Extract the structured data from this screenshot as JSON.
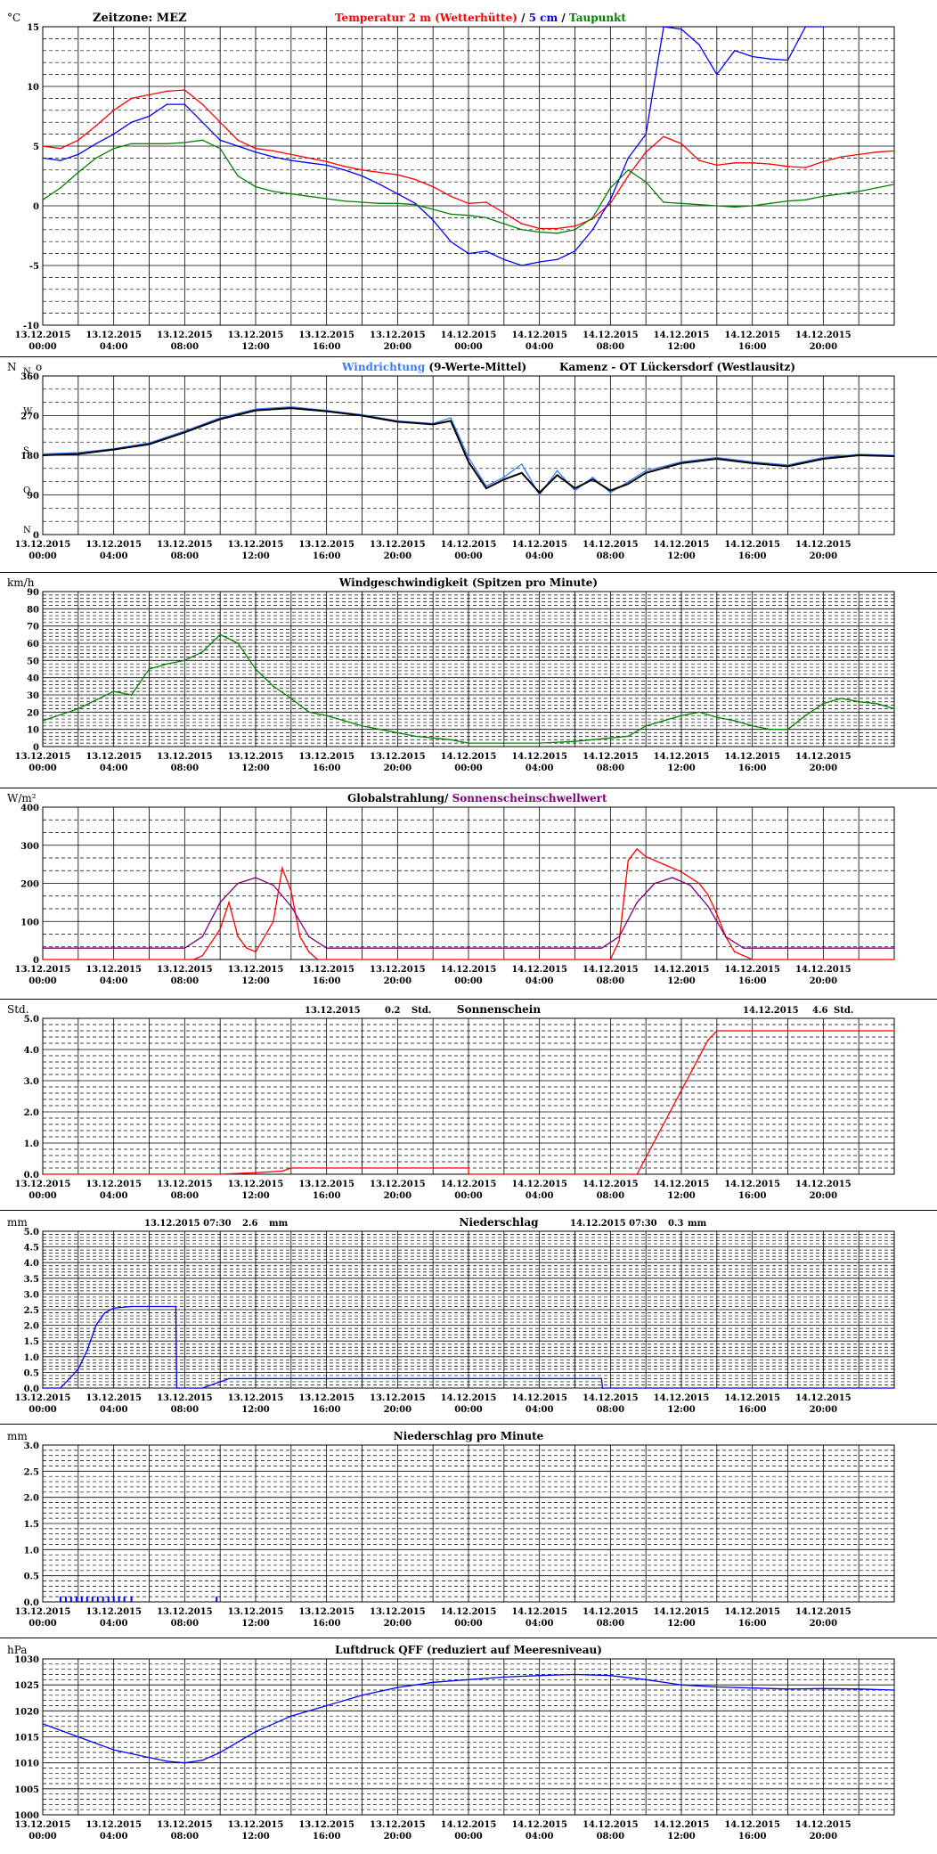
{
  "x_axis": {
    "dates": [
      "13.12.2015",
      "13.12.2015",
      "13.12.2015",
      "13.12.2015",
      "13.12.2015",
      "13.12.2015",
      "14.12.2015",
      "14.12.2015",
      "14.12.2015",
      "14.12.2015",
      "14.12.2015",
      "14.12.2015"
    ],
    "times": [
      "00:00",
      "04:00",
      "08:00",
      "12:00",
      "16:00",
      "20:00",
      "00:00",
      "04:00",
      "08:00",
      "12:00",
      "16:00",
      "20:00"
    ],
    "range_hours": [
      0,
      48
    ]
  },
  "chart_data": [
    {
      "id": "temp",
      "type": "line",
      "unit": "°C",
      "zone": "Zeitzone: MEZ",
      "title_parts": [
        {
          "text": "Temperatur 2 m (Wetterhütte)",
          "color": "#ff0000"
        },
        {
          "text": " / ",
          "color": "#000000"
        },
        {
          "text": "5 cm",
          "color": "#0000ff"
        },
        {
          "text": " / ",
          "color": "#000000"
        },
        {
          "text": "Taupunkt",
          "color": "#008000"
        }
      ],
      "ylim": [
        -10,
        15
      ],
      "yticks": [
        -10,
        -5,
        0,
        5,
        10,
        15
      ],
      "series": [
        {
          "color": "#ff0000",
          "x": [
            0,
            1,
            2,
            3,
            4,
            5,
            6,
            7,
            8,
            9,
            10,
            11,
            12,
            13,
            14,
            15,
            16,
            17,
            18,
            19,
            20,
            21,
            22,
            23,
            24,
            25,
            26,
            27,
            28,
            29,
            30,
            31,
            32,
            33,
            34,
            35,
            36,
            37,
            38,
            39,
            40,
            41,
            42,
            43,
            44,
            45,
            46,
            47,
            48
          ],
          "values": [
            5,
            4.8,
            5.5,
            6.7,
            8,
            9,
            9.3,
            9.6,
            9.7,
            8.5,
            7,
            5.5,
            4.8,
            4.6,
            4.3,
            4,
            3.7,
            3.3,
            3,
            2.8,
            2.6,
            2.2,
            1.6,
            0.8,
            0.2,
            0.3,
            -0.6,
            -1.5,
            -1.9,
            -1.9,
            -1.7,
            -1.1,
            0.2,
            2.5,
            4.5,
            5.8,
            5.2,
            3.8,
            3.4,
            3.6,
            3.6,
            3.5,
            3.3,
            3.2,
            3.7,
            4.1,
            4.3,
            4.5,
            4.6
          ]
        },
        {
          "color": "#0000ff",
          "x": [
            0,
            1,
            2,
            3,
            4,
            5,
            6,
            7,
            8,
            9,
            10,
            11,
            12,
            13,
            14,
            15,
            16,
            17,
            18,
            19,
            20,
            21,
            22,
            23,
            24,
            25,
            26,
            27,
            28,
            29,
            30,
            31,
            32,
            33,
            34,
            35,
            36,
            37,
            38,
            39,
            40,
            41,
            42,
            43,
            44
          ],
          "values": [
            4,
            3.8,
            4.3,
            5.2,
            6,
            7,
            7.5,
            8.5,
            8.5,
            7,
            5.5,
            5,
            4.5,
            4.1,
            3.8,
            3.6,
            3.4,
            3,
            2.5,
            1.8,
            1,
            0.2,
            -1.2,
            -3,
            -4,
            -3.8,
            -4.5,
            -5,
            -4.7,
            -4.5,
            -3.8,
            -2,
            0.5,
            4,
            6,
            15.5,
            14.8,
            13.5,
            11,
            13,
            12.5,
            12.3,
            12.2,
            15,
            15
          ]
        },
        {
          "color": "#008000",
          "x": [
            0,
            1,
            2,
            3,
            4,
            5,
            6,
            7,
            8,
            9,
            10,
            11,
            12,
            13,
            14,
            15,
            16,
            17,
            18,
            19,
            20,
            21,
            22,
            23,
            24,
            25,
            26,
            27,
            28,
            29,
            30,
            31,
            32,
            33,
            34,
            35,
            36,
            37,
            38,
            39,
            40,
            41,
            42,
            43,
            44,
            45,
            46,
            47,
            48
          ],
          "values": [
            0.5,
            1.5,
            2.8,
            4,
            4.8,
            5.2,
            5.2,
            5.2,
            5.3,
            5.5,
            4.8,
            2.5,
            1.6,
            1.2,
            1,
            0.8,
            0.6,
            0.4,
            0.3,
            0.2,
            0.2,
            0.1,
            -0.3,
            -0.7,
            -0.8,
            -1,
            -1.5,
            -2,
            -2.2,
            -2.3,
            -2,
            -1,
            1.5,
            3,
            2,
            0.3,
            0.2,
            0.1,
            0,
            -0.1,
            0,
            0.2,
            0.4,
            0.5,
            0.8,
            1,
            1.2,
            1.5,
            1.8
          ]
        }
      ]
    },
    {
      "id": "wind_dir",
      "type": "line",
      "unit": "N",
      "unit_suffix": "o",
      "title_parts": [
        {
          "text": "Windrichtung",
          "color": "#3b7cff"
        },
        {
          "text": " (9-Werte-Mittel)",
          "color": "#000000"
        }
      ],
      "station": "Kamenz - OT Lückersdorf (Westlausitz)",
      "ylim": [
        0,
        360
      ],
      "yticks": [
        0,
        90,
        180,
        270,
        360
      ],
      "compass": [
        "N",
        "O",
        "S",
        "W",
        "N"
      ],
      "series": [
        {
          "name": "Windrichtung",
          "color": "#3b7cff",
          "x": [
            0,
            2,
            4,
            6,
            8,
            10,
            12,
            14,
            16,
            18,
            20,
            22,
            23,
            24,
            25,
            26,
            27,
            28,
            29,
            30,
            31,
            32,
            33,
            34,
            36,
            38,
            40,
            42,
            44,
            46,
            48
          ],
          "values": [
            183,
            186,
            195,
            208,
            235,
            265,
            285,
            290,
            282,
            272,
            258,
            252,
            265,
            175,
            110,
            130,
            160,
            90,
            145,
            100,
            130,
            95,
            120,
            145,
            165,
            175,
            165,
            158,
            175,
            182,
            180
          ]
        },
        {
          "name": "9-Werte-Mittel",
          "color": "#000000",
          "x": [
            0,
            2,
            4,
            6,
            8,
            10,
            12,
            14,
            16,
            18,
            20,
            22,
            23,
            24,
            25,
            26,
            27,
            28,
            29,
            30,
            31,
            32,
            33,
            34,
            36,
            38,
            40,
            42,
            44,
            46,
            48
          ],
          "values": [
            180,
            183,
            193,
            205,
            232,
            262,
            282,
            287,
            280,
            270,
            256,
            250,
            258,
            165,
            105,
            125,
            140,
            95,
            135,
            105,
            125,
            100,
            115,
            140,
            162,
            172,
            162,
            155,
            172,
            180,
            178
          ]
        }
      ]
    },
    {
      "id": "wind_speed",
      "type": "line",
      "unit": "km/h",
      "title": "Windgeschwindigkeit (Spitzen pro Minute)",
      "ylim": [
        0,
        90
      ],
      "yticks": [
        0,
        10,
        20,
        30,
        40,
        50,
        60,
        70,
        80,
        90
      ],
      "series": [
        {
          "color": "#008000",
          "x": [
            0,
            2,
            4,
            5,
            6,
            7,
            8,
            9,
            10,
            11,
            12,
            13,
            14,
            15,
            16,
            17,
            18,
            19,
            20,
            21,
            22,
            23,
            24,
            26,
            28,
            30,
            32,
            33,
            34,
            35,
            36,
            37,
            38,
            39,
            40,
            41,
            42,
            43,
            44,
            45,
            46,
            47,
            48
          ],
          "values": [
            15,
            22,
            32,
            30,
            45,
            48,
            50,
            55,
            65,
            60,
            45,
            35,
            28,
            20,
            18,
            15,
            12,
            10,
            8,
            6,
            5,
            4,
            2,
            2,
            2,
            3,
            5,
            6,
            12,
            15,
            18,
            20,
            17,
            15,
            12,
            10,
            10,
            18,
            25,
            28,
            26,
            25,
            22
          ]
        }
      ]
    },
    {
      "id": "radiation",
      "type": "line",
      "unit": "W/m²",
      "title_parts": [
        {
          "text": "Globalstrahlung/",
          "color": "#000000"
        },
        {
          "text": " Sonnenscheinschwellwert",
          "color": "#800080"
        }
      ],
      "ylim": [
        0,
        400
      ],
      "yticks": [
        0,
        100,
        200,
        300,
        400
      ],
      "series": [
        {
          "name": "Globalstrahlung",
          "color": "#ff0000",
          "x": [
            0,
            8.5,
            9,
            10,
            10.5,
            11,
            11.5,
            12,
            13,
            13.5,
            14,
            14.5,
            15,
            15.5,
            24,
            32,
            32.5,
            33,
            33.5,
            34,
            35,
            36,
            37,
            37.5,
            38,
            38.5,
            39,
            40,
            48
          ],
          "values": [
            0,
            0,
            10,
            80,
            150,
            60,
            30,
            20,
            100,
            240,
            180,
            60,
            20,
            0,
            0,
            0,
            50,
            260,
            290,
            270,
            250,
            230,
            200,
            170,
            120,
            60,
            20,
            0,
            0
          ]
        },
        {
          "name": "Sonnenscheinschwellwert",
          "color": "#800080",
          "x": [
            0,
            8,
            9,
            10,
            11,
            12,
            13,
            14,
            15,
            16,
            31.5,
            32.5,
            33.5,
            34.5,
            35.5,
            36.5,
            37.5,
            38.5,
            39.5,
            40.5,
            48
          ],
          "values": [
            30,
            30,
            60,
            150,
            200,
            215,
            195,
            140,
            60,
            30,
            30,
            60,
            150,
            200,
            215,
            195,
            140,
            60,
            30,
            30,
            30
          ]
        }
      ]
    },
    {
      "id": "sunshine",
      "type": "line",
      "unit": "Std.",
      "title": "Sonnenschein",
      "day1": {
        "date": "13.12.2015",
        "value": "0.2",
        "unit": "Std."
      },
      "day2": {
        "date": "14.12.2015",
        "value": "4.6",
        "unit": "Std."
      },
      "ylim": [
        0,
        5
      ],
      "yticks": [
        "0.0",
        "1.0",
        "2.0",
        "3.0",
        "4.0",
        "5.0"
      ],
      "series": [
        {
          "color": "#ff0000",
          "x": [
            0,
            10,
            12,
            13.5,
            14,
            24,
            24.01,
            33.5,
            37.5,
            38,
            48
          ],
          "values": [
            0,
            0,
            0.05,
            0.1,
            0.2,
            0.2,
            0,
            0,
            4.3,
            4.6,
            4.6
          ]
        }
      ]
    },
    {
      "id": "precip",
      "type": "line",
      "unit": "mm",
      "title": "Niederschlag",
      "day1": {
        "datetime": "13.12.2015 07:30",
        "value": "2.6",
        "unit": "mm"
      },
      "day2": {
        "datetime": "14.12.2015 07:30",
        "value": "0.3",
        "unit": "mm"
      },
      "ylim": [
        0,
        5
      ],
      "yticks": [
        "0.0",
        "0.5",
        "1.0",
        "1.5",
        "2.0",
        "2.5",
        "3.0",
        "3.5",
        "4.0",
        "4.5",
        "5.0"
      ],
      "series": [
        {
          "color": "#0000ff",
          "x": [
            0,
            1,
            1.5,
            2,
            2.5,
            3,
            3.5,
            4,
            5,
            6,
            7,
            7.5,
            7.55,
            9,
            10,
            10.5,
            20,
            31.5,
            31.55,
            48
          ],
          "values": [
            0,
            0,
            0.3,
            0.6,
            1.2,
            2,
            2.4,
            2.55,
            2.6,
            2.6,
            2.6,
            2.6,
            0,
            0,
            0.2,
            0.3,
            0.3,
            0.3,
            0,
            0
          ]
        }
      ]
    },
    {
      "id": "precip_min",
      "type": "bar",
      "unit": "mm",
      "title": "Niederschlag pro Minute",
      "ylim": [
        0,
        3
      ],
      "yticks": [
        "0.0",
        "0.5",
        "1.0",
        "1.5",
        "2.0",
        "2.5",
        "3.0"
      ],
      "series": [
        {
          "color": "#0000ff",
          "x": [
            1,
            1.3,
            1.6,
            1.9,
            2.2,
            2.5,
            2.8,
            3.1,
            3.4,
            3.7,
            4,
            4.3,
            4.6,
            5,
            9.8
          ],
          "values": [
            0.1,
            0.1,
            0.1,
            0.1,
            0.1,
            0.1,
            0.1,
            0.1,
            0.1,
            0.1,
            0.1,
            0.1,
            0.1,
            0.1,
            0.1
          ]
        }
      ]
    },
    {
      "id": "pressure",
      "type": "line",
      "unit": "hPa",
      "title": "Luftdruck QFF (reduziert auf Meeresniveau)",
      "ylim": [
        1000,
        1030
      ],
      "yticks": [
        1000,
        1005,
        1010,
        1015,
        1020,
        1025,
        1030
      ],
      "series": [
        {
          "color": "#0000ff",
          "x": [
            0,
            2,
            4,
            6,
            7,
            8,
            9,
            10,
            12,
            14,
            16,
            18,
            20,
            22,
            24,
            26,
            28,
            30,
            32,
            34,
            36,
            38,
            40,
            42,
            44,
            46,
            48
          ],
          "values": [
            1017.5,
            1015,
            1012.5,
            1011,
            1010.3,
            1010,
            1010.5,
            1012,
            1016,
            1019,
            1021,
            1023,
            1024.5,
            1025.5,
            1026,
            1026.5,
            1026.8,
            1027,
            1026.8,
            1026,
            1025,
            1024.6,
            1024.4,
            1024.2,
            1024.3,
            1024.2,
            1024
          ]
        }
      ]
    }
  ]
}
